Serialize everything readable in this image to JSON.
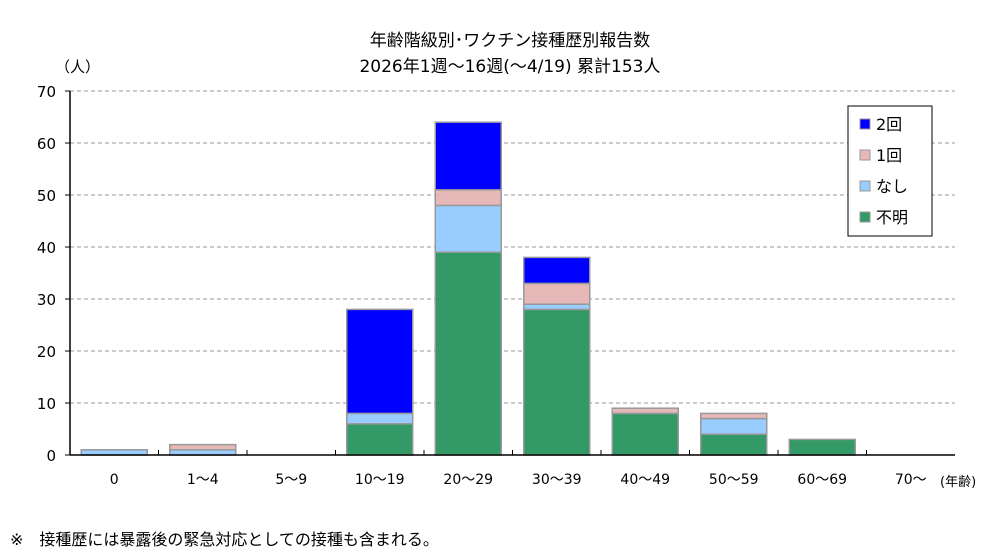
{
  "chart_data": {
    "type": "bar",
    "stacked": true,
    "title": "年齢階級別･ワクチン接種歴別報告数",
    "subtitle": "2026年1週～16週(～4/19) 累計153人",
    "ylabel": "（人）",
    "xlabel": "(年齢)",
    "ylim": [
      0,
      70
    ],
    "yticks": [
      0,
      10,
      20,
      30,
      40,
      50,
      60,
      70
    ],
    "grid": true,
    "legend_position": "top-right",
    "categories": [
      "0",
      "1～4",
      "5～9",
      "10～19",
      "20～29",
      "30～39",
      "40～49",
      "50～59",
      "60～69",
      "70～"
    ],
    "series": [
      {
        "name": "不明",
        "color": "#339966",
        "values": [
          0,
          0,
          0,
          6,
          39,
          28,
          8,
          4,
          3,
          0
        ]
      },
      {
        "name": "なし",
        "color": "#99ccff",
        "values": [
          1,
          1,
          0,
          2,
          9,
          1,
          0,
          3,
          0,
          0
        ]
      },
      {
        "name": "1回",
        "color": "#e6b8b7",
        "values": [
          0,
          1,
          0,
          0,
          3,
          4,
          1,
          1,
          0,
          0
        ]
      },
      {
        "name": "2回",
        "color": "#0000ff",
        "values": [
          0,
          0,
          0,
          20,
          13,
          5,
          0,
          0,
          0,
          0
        ]
      }
    ]
  },
  "footnote": "※　接種歴には暴露後の緊急対応としての接種も含まれる。"
}
